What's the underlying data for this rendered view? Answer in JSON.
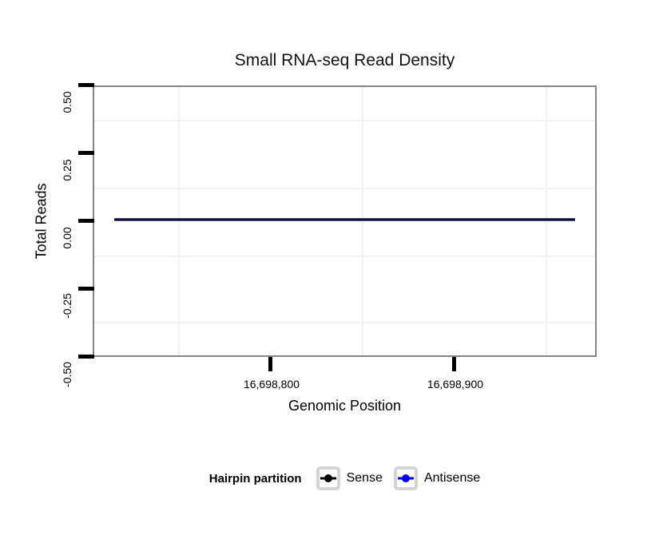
{
  "title": "Small RNA-seq Read Density",
  "axes": {
    "x": {
      "label": "Genomic Position",
      "tick_labels": [
        "16,698,800",
        "16,698,900"
      ]
    },
    "y": {
      "label": "Total Reads",
      "tick_labels": [
        "0.50",
        "0.25",
        "0.00",
        "-0.25",
        "-0.50"
      ]
    }
  },
  "legend": {
    "title": "Hairpin partition",
    "items": [
      {
        "label": "Sense",
        "color": "#000000"
      },
      {
        "label": "Antisense",
        "color": "#0000FF"
      }
    ]
  },
  "colors": {
    "sense_line": "#000000",
    "antisense_line": "#0000FF",
    "overplotted_line": "#0A0A33",
    "panel_border": "#858585",
    "minor_gridline": "#F2F2F2",
    "legend_key_border": "#D4D4D4",
    "axis_tick": "#000000",
    "background": "#FFFFFF"
  },
  "chart_data": {
    "type": "line",
    "title": "Small RNA-seq Read Density",
    "xlabel": "Genomic Position",
    "ylabel": "Total Reads",
    "legend_title": "Hairpin partition",
    "legend_position": "bottom",
    "x_ticks": [
      16698800,
      16698900
    ],
    "y_ticks": [
      0.5,
      0.25,
      0.0,
      -0.25,
      -0.5
    ],
    "ylim": [
      -0.5,
      0.5
    ],
    "xlim_approx": [
      16698703,
      16698978
    ],
    "grid": "minor gridlines only (very light gray), white panel with gray border",
    "series": [
      {
        "name": "Sense",
        "color": "#000000",
        "x": [
          16698715,
          16698966
        ],
        "values": [
          0,
          0
        ],
        "note": "flat horizontal line at y=0 across the full displayed region"
      },
      {
        "name": "Antisense",
        "color": "#0000FF",
        "x": [
          16698715,
          16698966
        ],
        "values": [
          0,
          0
        ],
        "note": "flat horizontal line at y=0, overplotted with Sense giving a dark navy line"
      }
    ]
  }
}
